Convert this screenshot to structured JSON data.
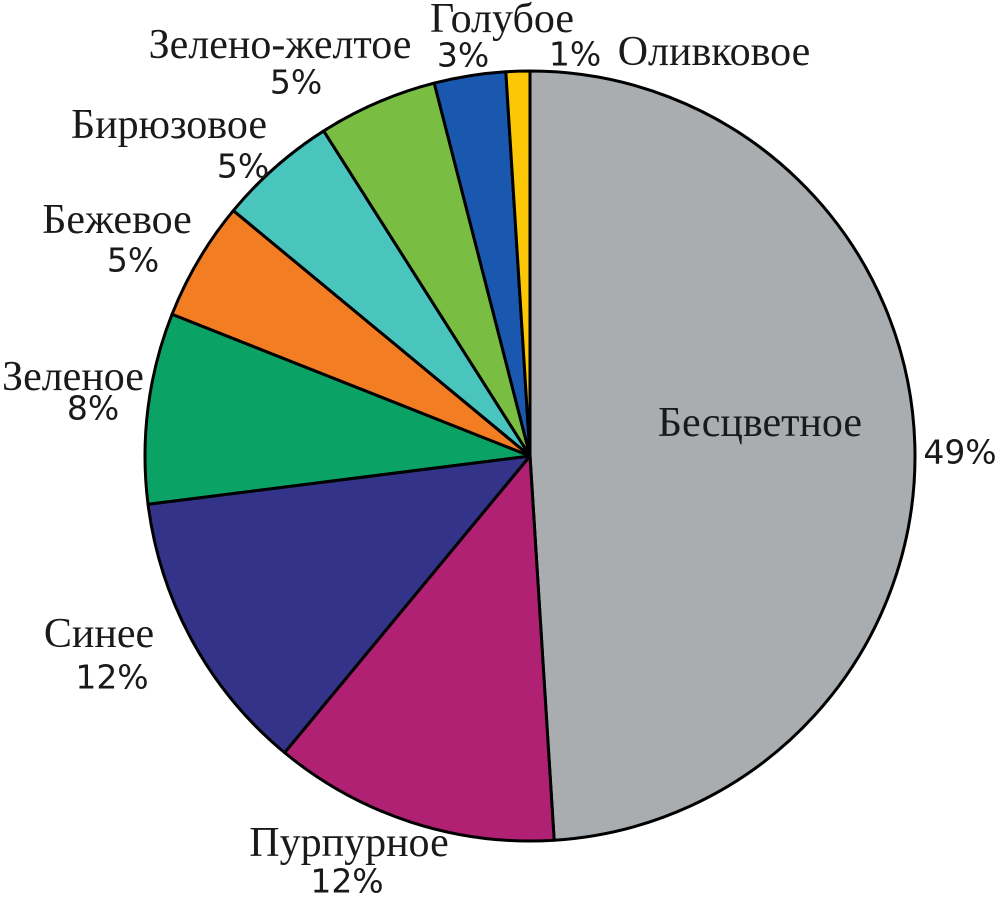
{
  "chart_data": {
    "type": "pie",
    "title": "",
    "unit": "%",
    "start_angle_deg": 0,
    "direction": "clockwise",
    "legend": "none",
    "labels_position": "outside; largest slice name inside",
    "background": "#FFFFFF",
    "outline_color": "#000000",
    "text_color": "#1A1A1A",
    "slices": [
      {
        "label": "Бесцветное",
        "value": 49,
        "pct_label": "49%",
        "color": "#A9ADAF"
      },
      {
        "label": "Пурпурное",
        "value": 12,
        "pct_label": "12%",
        "color": "#B02073"
      },
      {
        "label": "Синее",
        "value": 12,
        "pct_label": "12%",
        "color": "#333389"
      },
      {
        "label": "Зеленое",
        "value": 8,
        "pct_label": "8%",
        "color": "#0BA365"
      },
      {
        "label": "Бежевое",
        "value": 5,
        "pct_label": "5%",
        "color": "#F37D23"
      },
      {
        "label": "Бирюзовое",
        "value": 5,
        "pct_label": "5%",
        "color": "#4AC5BD"
      },
      {
        "label": "Зелено-желтое",
        "value": 5,
        "pct_label": "5%",
        "color": "#7ABD43"
      },
      {
        "label": "Голубое",
        "value": 3,
        "pct_label": "3%",
        "color": "#1A57AE"
      },
      {
        "label": "Оливковое",
        "value": 1,
        "pct_label": "1%",
        "color": "#FBC707"
      }
    ]
  }
}
